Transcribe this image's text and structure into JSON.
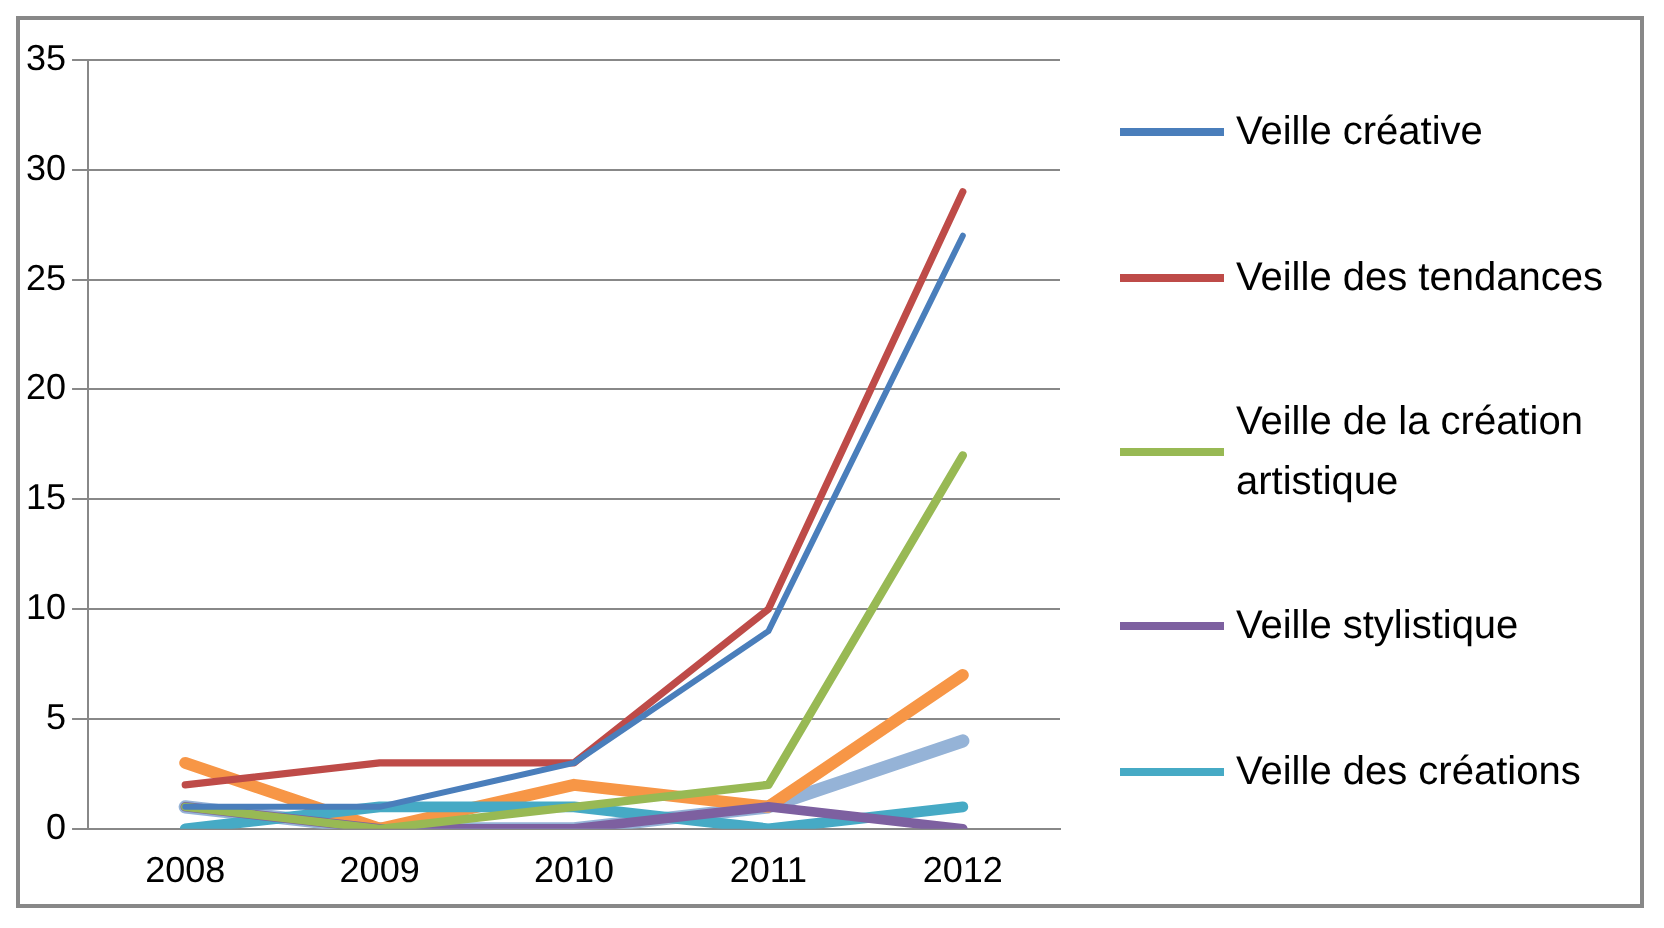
{
  "chart_data": {
    "type": "line",
    "categories": [
      "2008",
      "2009",
      "2010",
      "2011",
      "2012"
    ],
    "series": [
      {
        "name": "Veille créative",
        "color": "#4a7ebb",
        "values": [
          1,
          1,
          3,
          9,
          27
        ]
      },
      {
        "name": "Veille des tendances",
        "color": "#be4b48",
        "values": [
          2,
          3,
          3,
          10,
          29
        ]
      },
      {
        "name": "Veille de la création artistique",
        "color": "#98b954",
        "values": [
          1,
          0,
          1,
          2,
          17
        ]
      },
      {
        "name": "Veille stylistique",
        "color": "#7d60a0",
        "values": [
          1,
          0,
          0,
          1,
          0
        ]
      },
      {
        "name": "Veille des créations",
        "color": "#46aac5",
        "values": [
          0,
          1,
          1,
          0,
          1
        ]
      },
      {
        "color": "#f79646",
        "values": [
          3,
          0,
          2,
          1,
          7
        ]
      },
      {
        "color": "#95b3d7",
        "values": [
          1,
          0,
          0,
          1,
          4
        ]
      }
    ],
    "ylim": [
      0,
      35
    ],
    "yticks": [
      0,
      5,
      10,
      15,
      20,
      25,
      30,
      35
    ],
    "grid": "y",
    "legend": "right",
    "marker": "none",
    "line_style": "solid"
  }
}
